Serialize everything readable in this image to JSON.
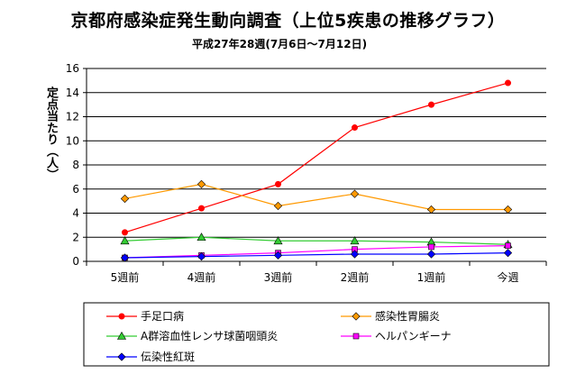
{
  "title": "京都府感染症発生動向調査（上位5疾患の推移グラフ）",
  "subtitle": "平成27年28週(7月6日～7月12日)",
  "chart_data": {
    "type": "line",
    "ylabel": "定点当たり（人）",
    "xlabel": "",
    "categories": [
      "5週前",
      "4週前",
      "3週前",
      "2週前",
      "1週前",
      "今週"
    ],
    "ylim": [
      0,
      16
    ],
    "yticks": [
      0,
      2,
      4,
      6,
      8,
      10,
      12,
      14,
      16
    ],
    "grid": true,
    "legend_position": "bottom",
    "series": [
      {
        "name": "手足口病",
        "marker": "circle",
        "color": "#ff0000",
        "values": [
          2.4,
          4.4,
          6.4,
          11.1,
          13.0,
          14.8
        ]
      },
      {
        "name": "感染性胃腸炎",
        "marker": "diamond",
        "color": "#ff9900",
        "values": [
          5.2,
          6.4,
          4.6,
          5.6,
          4.3,
          4.3
        ]
      },
      {
        "name": "A群溶血性レンサ球菌咽頭炎",
        "marker": "triangle",
        "color": "#33cc33",
        "values": [
          1.7,
          2.0,
          1.7,
          1.7,
          1.6,
          1.4
        ]
      },
      {
        "name": "ヘルパンギーナ",
        "marker": "square",
        "color": "#ff00ff",
        "values": [
          0.3,
          0.5,
          0.7,
          1.0,
          1.2,
          1.3
        ]
      },
      {
        "name": "伝染性紅斑",
        "marker": "diamond",
        "color": "#0000ff",
        "values": [
          0.3,
          0.4,
          0.5,
          0.6,
          0.6,
          0.7
        ]
      }
    ]
  }
}
